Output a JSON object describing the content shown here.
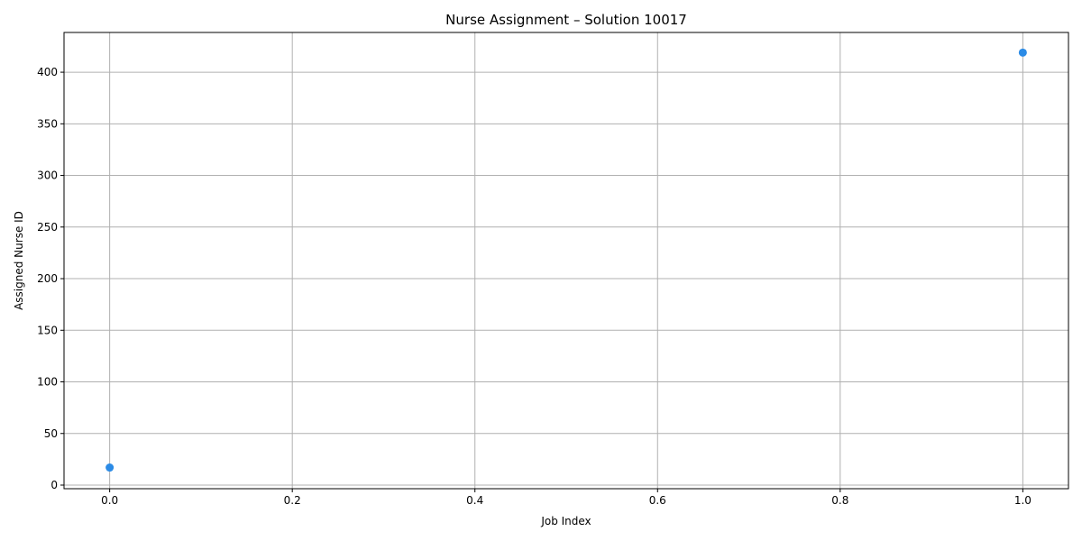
{
  "chart_data": {
    "type": "scatter",
    "title": "Nurse Assignment – Solution 10017",
    "xlabel": "Job Index",
    "ylabel": "Assigned Nurse ID",
    "xlim": [
      -0.05,
      1.05
    ],
    "ylim": [
      -3.5,
      438.5
    ],
    "xticks": [
      "0.0",
      "0.2",
      "0.4",
      "0.6",
      "0.8",
      "1.0"
    ],
    "yticks": [
      "0",
      "50",
      "100",
      "150",
      "200",
      "250",
      "300",
      "350",
      "400"
    ],
    "grid": true,
    "legend": "none",
    "series": [
      {
        "color": "#2b8be6",
        "points": [
          {
            "x": 0,
            "y": 17
          },
          {
            "x": 1,
            "y": 419
          }
        ]
      }
    ]
  }
}
